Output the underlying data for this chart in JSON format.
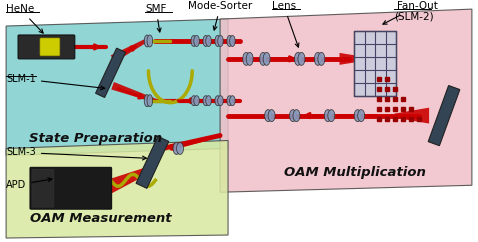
{
  "fig_width": 4.78,
  "fig_height": 2.42,
  "dpi": 100,
  "bg_color": "#ffffff",
  "panel_state_prep": {
    "color": "#7ecece",
    "alpha": 0.9,
    "label": "State Preparation",
    "fontsize": 9.5
  },
  "panel_oam_mult": {
    "color": "#f0c0c8",
    "alpha": 0.9,
    "label": "OAM Multiplication",
    "fontsize": 9.5
  },
  "panel_oam_meas": {
    "color": "#d8e8a0",
    "alpha": 0.9,
    "label": "OAM Measurement",
    "fontsize": 9.5
  },
  "beam_color": "#cc0000",
  "lens_color": "#8899bb",
  "slm_color": "#556677",
  "fiber_color": "#aaaa00"
}
